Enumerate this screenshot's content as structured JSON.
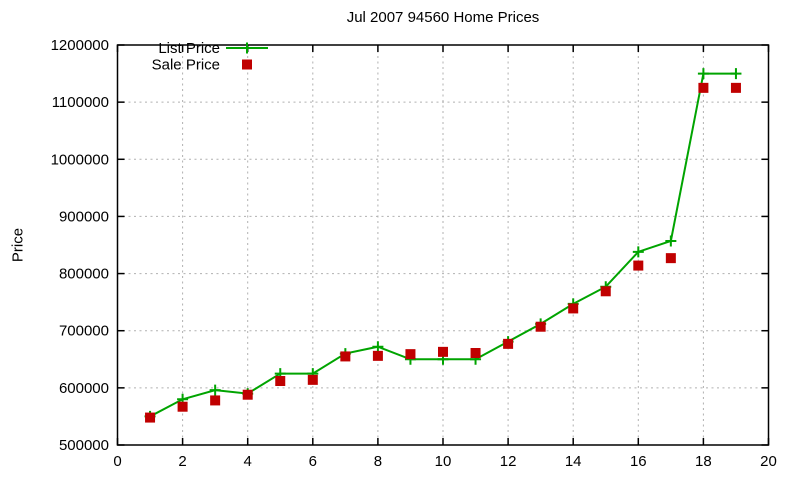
{
  "chart_data": {
    "type": "line",
    "title": "Jul 2007 94560 Home Prices",
    "xlabel": "",
    "ylabel": "Price",
    "xlim": [
      0,
      20
    ],
    "ylim": [
      500000,
      1200000
    ],
    "x_ticks": [
      0,
      2,
      4,
      6,
      8,
      10,
      12,
      14,
      16,
      18,
      20
    ],
    "y_ticks": [
      500000,
      600000,
      700000,
      800000,
      900000,
      1000000,
      1100000,
      1200000
    ],
    "grid": true,
    "legend_position": "top-left-inside",
    "background_color": "#ffffff",
    "axis_color": "#000000",
    "grid_color": "#b0b0b0",
    "x": [
      1,
      2,
      3,
      4,
      5,
      6,
      7,
      8,
      9,
      10,
      11,
      12,
      13,
      14,
      15,
      16,
      17,
      18,
      19
    ],
    "series": [
      {
        "name": "List Price",
        "marker": "plus",
        "line": true,
        "color": "#00a400",
        "values": [
          550000,
          580000,
          596000,
          590000,
          625000,
          625000,
          660000,
          672000,
          650000,
          650000,
          650000,
          681000,
          712000,
          747000,
          777000,
          838000,
          857000,
          1150000,
          1150000
        ]
      },
      {
        "name": "Sale Price",
        "marker": "square",
        "line": false,
        "color": "#c00000",
        "values": [
          548000,
          567000,
          578000,
          588000,
          612000,
          614000,
          655000,
          656000,
          659000,
          663000,
          661000,
          677000,
          707000,
          739000,
          769000,
          814000,
          827000,
          1125000,
          1125000
        ]
      }
    ]
  }
}
